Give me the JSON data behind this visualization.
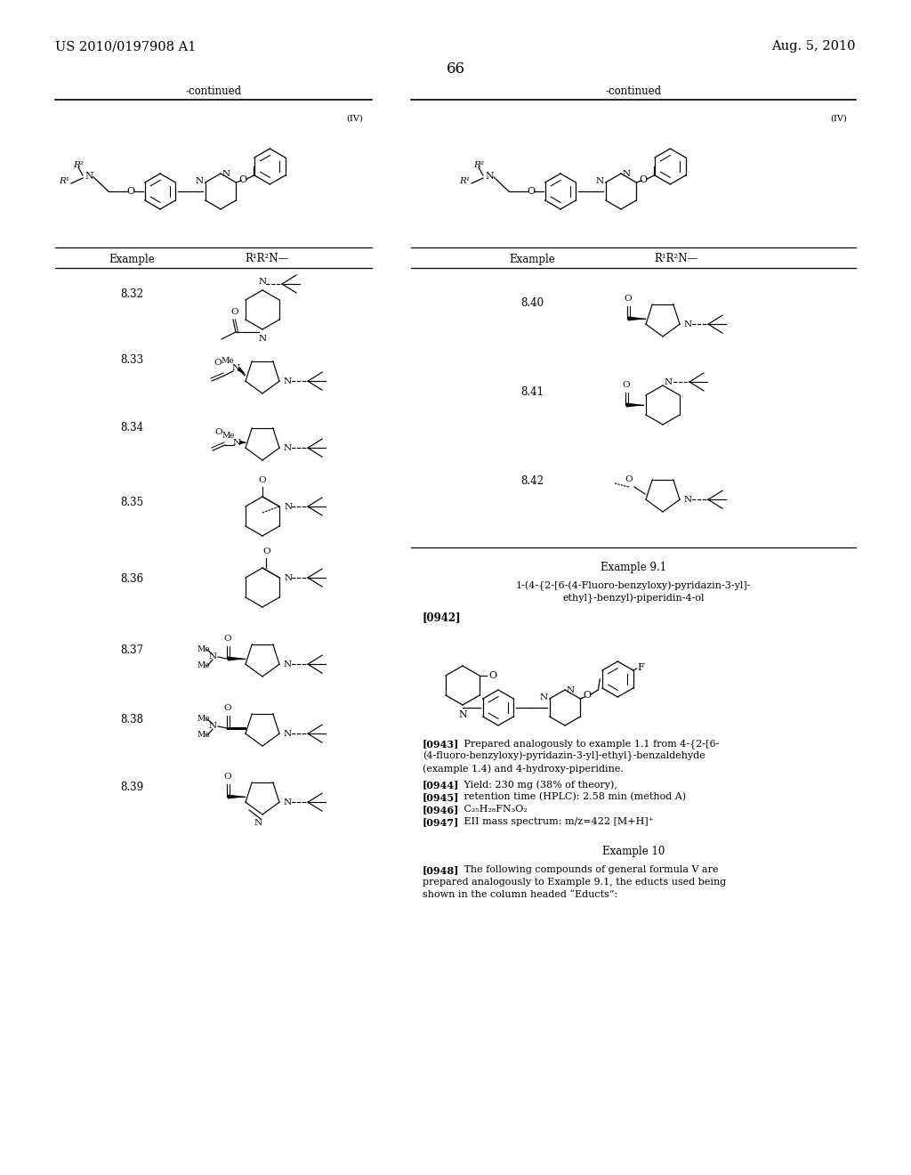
{
  "title_left": "US 2010/0197908 A1",
  "title_right": "Aug. 5, 2010",
  "page_number": "66",
  "background_color": "#ffffff",
  "text_color": "#000000",
  "font_size_header": 10.5,
  "font_size_body": 8.5,
  "font_size_small": 8.0,
  "font_size_tiny": 7.0,
  "left_continued": "-continued",
  "right_continued": "-continued",
  "formula_label": "(IV)",
  "left_example_label": "Example",
  "left_r_group_label": "R¹R²N—",
  "examples_left": [
    "8.32",
    "8.33",
    "8.34",
    "8.35",
    "8.36",
    "8.37",
    "8.38",
    "8.39"
  ],
  "examples_right": [
    "8.40",
    "8.41",
    "8.42"
  ],
  "example91_title": "Example 9.1",
  "example91_name1": "1-(4-{2-[6-(4-Fluoro-benzyloxy)-pyridazin-3-yl]-",
  "example91_name2": "ethyl}-benzyl)-piperidin-4-ol",
  "para_0942": "[0942]",
  "para_0943_tag": "[0943]",
  "para_0943_text": "   Prepared analogously to example 1.1 from 4-{2-[6-",
  "para_0943_text2": "(4-fluoro-benzyloxy)-pyridazin-3-yl]-ethyl}-benzaldehyde",
  "para_0943_text3": "(example 1.4) and 4-hydroxy-piperidine.",
  "para_0944_tag": "[0944]",
  "para_0944_text": "   Yield: 230 mg (38% of theory),",
  "para_0945_tag": "[0945]",
  "para_0945_text": "   retention time (HPLC): 2.58 min (method A)",
  "para_0946_tag": "[0946]",
  "para_0946_text": "   C₂₅H₂₈FN₃O₂",
  "para_0947_tag": "[0947]",
  "para_0947_text": "   EII mass spectrum: m/z=422 [M+H]⁺",
  "example10_title": "Example 10",
  "para_0948_tag": "[0948]",
  "para_0948_text": "   The following compounds of general formula V are",
  "para_0948_text2": "prepared analogously to Example 9.1, the educts used being",
  "para_0948_text3": "shown in the column headed “Educts”:"
}
